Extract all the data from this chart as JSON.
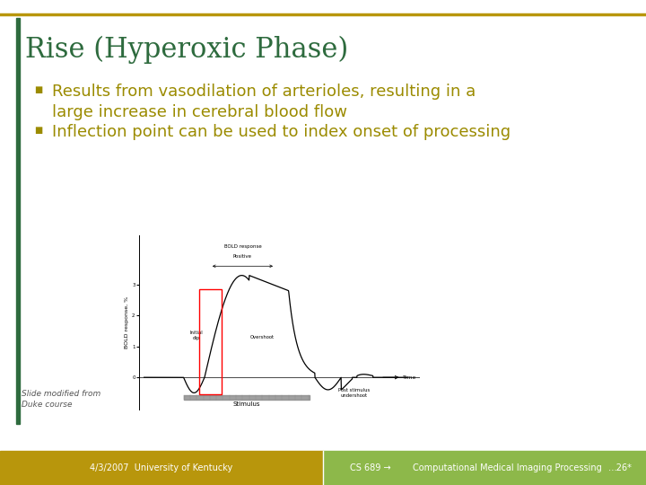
{
  "title": "Rise (Hyperoxic Phase)",
  "title_color": "#2E6B3E",
  "title_fontsize": 22,
  "bullet1_line1": "Results from vasodilation of arterioles, resulting in a",
  "bullet1_line2": "large increase in cerebral blood flow",
  "bullet2": "Inflection point can be used to index onset of processing",
  "bullet_color": "#9B8B00",
  "bullet_fontsize": 13,
  "slide_note": "Slide modified from\nDuke course",
  "footer_left": "4/3/2007  University of Kentucky",
  "footer_center_left": "CS 689 →",
  "footer_center_right": "Computational Medical Imaging Processing",
  "footer_right": "…26*",
  "footer_bg_left": "#B8960C",
  "footer_bg_right": "#8DB84A",
  "footer_text_color": "#ffffff",
  "bg_color": "#ffffff",
  "border_color": "#B8960C",
  "left_border_color": "#2E6B3E"
}
